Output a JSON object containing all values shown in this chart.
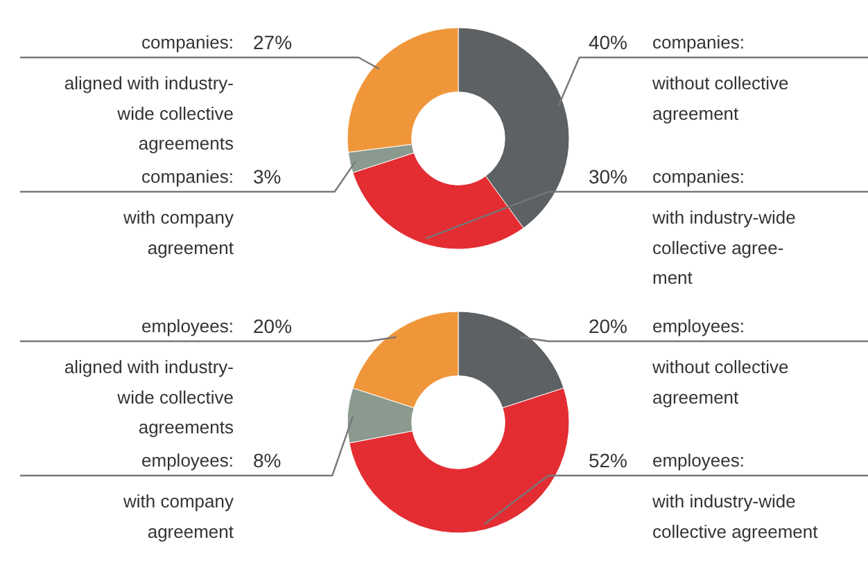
{
  "chart_data": [
    {
      "type": "donut",
      "categories": [
        "companies:\nwithout collective\nagreement",
        "companies:\nwith industry-wide\ncollective agree-\nment",
        "companies:\nwith company\nagreement",
        "companies:\naligned with industry-\nwide collective\nagreements"
      ],
      "values": [
        40,
        30,
        3,
        27
      ],
      "value_labels": [
        "40%",
        "30%",
        "3%",
        "27%"
      ],
      "colors": [
        "#5d6163",
        "#e32d33",
        "#8a9a8f",
        "#f0963a"
      ]
    },
    {
      "type": "donut",
      "categories": [
        "employees:\nwithout collective\nagreement",
        "employees:\nwith industry-wide\ncollective agreement",
        "employees:\nwith company\nagreement",
        "employees:\naligned with industry-\nwide collective\nagreements"
      ],
      "values": [
        20,
        52,
        8,
        20
      ],
      "value_labels": [
        "20%",
        "52%",
        "8%",
        "20%"
      ],
      "colors": [
        "#5d6163",
        "#e32d33",
        "#8a9a8f",
        "#f0963a"
      ]
    }
  ]
}
